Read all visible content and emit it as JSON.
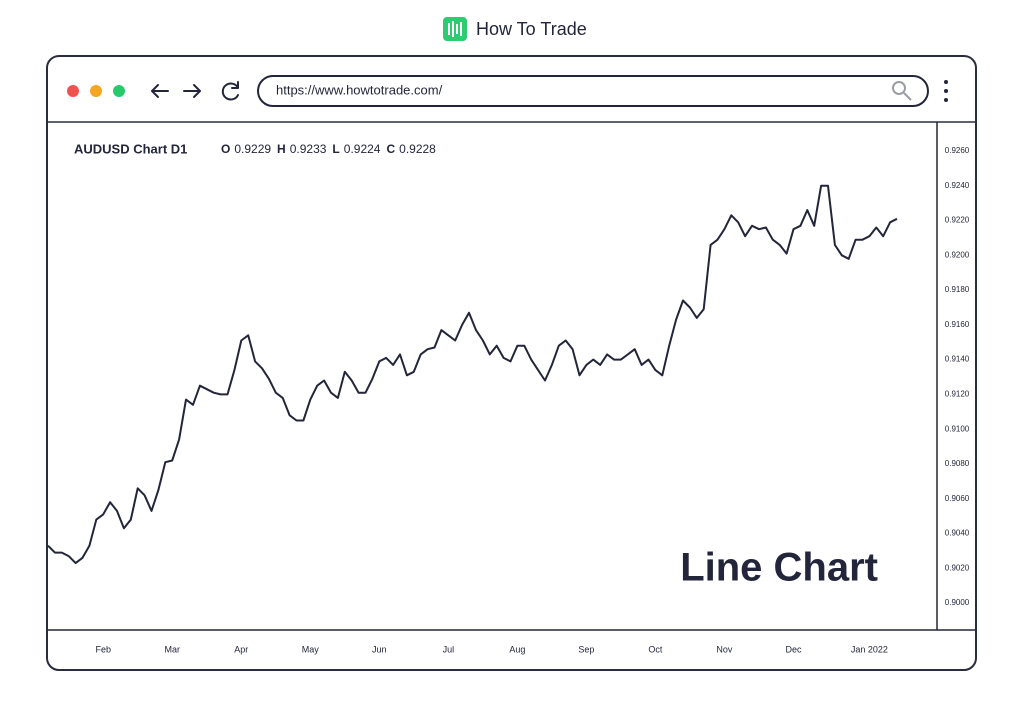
{
  "header": {
    "brand": "How To Trade"
  },
  "browser": {
    "url": "https://www.howtotrade.com/"
  },
  "chart_data": {
    "type": "line",
    "title": "AUDUSD Chart D1",
    "ohlc": [
      {
        "label": "O",
        "value": 0.9229
      },
      {
        "label": "H",
        "value": 0.9233
      },
      {
        "label": "L",
        "value": 0.9224
      },
      {
        "label": "C",
        "value": 0.9228
      }
    ],
    "annotation": "Line Chart",
    "color": "#23263a",
    "categories": [
      null,
      null,
      null,
      null,
      null,
      null,
      null,
      null,
      "Feb",
      null,
      null,
      null,
      null,
      null,
      null,
      null,
      null,
      null,
      "Mar",
      null,
      null,
      null,
      null,
      null,
      null,
      null,
      null,
      null,
      "Apr",
      null,
      null,
      null,
      null,
      null,
      null,
      null,
      null,
      null,
      "May",
      null,
      null,
      null,
      null,
      null,
      null,
      null,
      null,
      null,
      "Jun",
      null,
      null,
      null,
      null,
      null,
      null,
      null,
      null,
      null,
      "Jul",
      null,
      null,
      null,
      null,
      null,
      null,
      null,
      null,
      null,
      "Aug",
      null,
      null,
      null,
      null,
      null,
      null,
      null,
      null,
      null,
      "Sep",
      null,
      null,
      null,
      null,
      null,
      null,
      null,
      null,
      null,
      "Oct",
      null,
      null,
      null,
      null,
      null,
      null,
      null,
      null,
      null,
      "Nov",
      null,
      null,
      null,
      null,
      null,
      null,
      null,
      null,
      null,
      "Dec",
      null,
      null,
      null,
      null,
      null,
      null,
      null,
      null,
      null,
      null,
      "Jan 2022",
      null,
      null,
      null,
      null
    ],
    "values": [
      0.9033,
      0.9029,
      0.9029,
      0.9027,
      0.9023,
      0.9026,
      0.9033,
      0.9048,
      0.9051,
      0.9058,
      0.9053,
      0.9043,
      0.9048,
      0.9066,
      0.9062,
      0.9053,
      0.9065,
      0.9081,
      0.9082,
      0.9094,
      0.9117,
      0.9114,
      0.9125,
      0.9123,
      0.9121,
      0.912,
      0.912,
      0.9134,
      0.9151,
      0.9154,
      0.9139,
      0.9135,
      0.9129,
      0.9121,
      0.9118,
      0.9108,
      0.9105,
      0.9105,
      0.9117,
      0.9125,
      0.9128,
      0.9121,
      0.9118,
      0.9133,
      0.9128,
      0.9121,
      0.9121,
      0.9129,
      0.9139,
      0.9141,
      0.9137,
      0.9143,
      0.9131,
      0.9133,
      0.9143,
      0.9146,
      0.9147,
      0.9157,
      0.9154,
      0.9151,
      0.916,
      0.9167,
      0.9157,
      0.9151,
      0.9143,
      0.9148,
      0.9141,
      0.9139,
      0.9148,
      0.9148,
      0.914,
      0.9134,
      0.9128,
      0.9137,
      0.9148,
      0.9151,
      0.9146,
      0.9131,
      0.9137,
      0.914,
      0.9137,
      0.9143,
      0.914,
      0.914,
      0.9143,
      0.9146,
      0.9137,
      0.914,
      0.9134,
      0.9131,
      0.9148,
      0.9163,
      0.9174,
      0.917,
      0.9164,
      0.9169,
      0.9206,
      0.9209,
      0.9215,
      0.9223,
      0.9219,
      0.9211,
      0.9217,
      0.9215,
      0.9216,
      0.9209,
      0.9206,
      0.9201,
      0.9215,
      0.9217,
      0.9226,
      0.9217,
      0.924,
      0.924,
      0.9206,
      0.92,
      0.9198,
      0.9209,
      0.9209,
      0.9211,
      0.9216,
      0.9211,
      0.9219,
      0.9221
    ],
    "ylim": [
      0.89845,
      0.92761
    ],
    "yticks": [
      {
        "value": 0.9,
        "label": "0.9000"
      },
      {
        "value": 0.902,
        "label": "0.9020"
      },
      {
        "value": 0.904,
        "label": "0.9040"
      },
      {
        "value": 0.906,
        "label": "0.9060"
      },
      {
        "value": 0.908,
        "label": "0.9080"
      },
      {
        "value": 0.91,
        "label": "0.9100"
      },
      {
        "value": 0.912,
        "label": "0.9120"
      },
      {
        "value": 0.914,
        "label": "0.9140"
      },
      {
        "value": 0.916,
        "label": "0.9160"
      },
      {
        "value": 0.918,
        "label": "0.9180"
      },
      {
        "value": 0.92,
        "label": "0.9200"
      },
      {
        "value": 0.922,
        "label": "0.9220"
      },
      {
        "value": 0.924,
        "label": "0.9240"
      },
      {
        "value": 0.926,
        "label": "0.9260"
      }
    ],
    "grid": false
  }
}
